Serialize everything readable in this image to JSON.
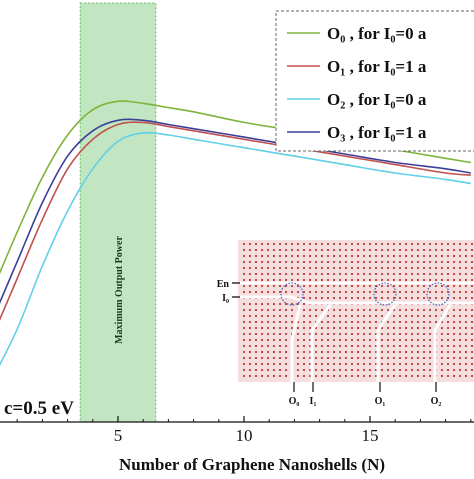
{
  "chart_data": {
    "type": "line",
    "title": "",
    "xlabel": "Number of Graphene Nanoshells (N)",
    "ylabel": "",
    "xlim": [
      0,
      19
    ],
    "ylim": [
      0,
      1
    ],
    "x_ticks": [
      5,
      10,
      15
    ],
    "grid": false,
    "legend_position": "top-right",
    "highlight_band": {
      "x0": 3.5,
      "x1": 6.5,
      "label": "Maximum Output Power",
      "color": "#8fd28f"
    },
    "annotation": "c=0.5 eV",
    "series": [
      {
        "name": "O₀ , for I₀=0 a",
        "color": "#7fb43a",
        "x": [
          0,
          1,
          2,
          3,
          4,
          5,
          6,
          7,
          8,
          10,
          12,
          14,
          16,
          18,
          19
        ],
        "y": [
          0.31,
          0.45,
          0.58,
          0.68,
          0.74,
          0.76,
          0.755,
          0.745,
          0.735,
          0.71,
          0.69,
          0.665,
          0.645,
          0.625,
          0.615
        ]
      },
      {
        "name": "O₁ , for I₀=1 a",
        "color": "#c0504d",
        "x": [
          0,
          1,
          2,
          3,
          4,
          5,
          6,
          7,
          8,
          10,
          12,
          14,
          16,
          18,
          19
        ],
        "y": [
          0.2,
          0.34,
          0.48,
          0.6,
          0.67,
          0.705,
          0.71,
          0.7,
          0.69,
          0.67,
          0.65,
          0.63,
          0.61,
          0.59,
          0.585
        ]
      },
      {
        "name": "O₂ , for I₀=0 a",
        "color": "#5fd0e8",
        "x": [
          0,
          1,
          2,
          3,
          4,
          5,
          6,
          7,
          8,
          10,
          12,
          14,
          16,
          18,
          19
        ],
        "y": [
          0.1,
          0.22,
          0.37,
          0.5,
          0.6,
          0.665,
          0.685,
          0.68,
          0.67,
          0.65,
          0.63,
          0.61,
          0.59,
          0.575,
          0.565
        ]
      },
      {
        "name": "O₃ , for I₀=1 a",
        "color": "#3b3f99",
        "x": [
          0,
          1,
          2,
          3,
          4,
          5,
          6,
          7,
          8,
          10,
          12,
          14,
          16,
          18,
          19
        ],
        "y": [
          0.24,
          0.38,
          0.52,
          0.63,
          0.69,
          0.715,
          0.715,
          0.705,
          0.695,
          0.675,
          0.655,
          0.635,
          0.615,
          0.6,
          0.59
        ]
      }
    ]
  },
  "inset": {
    "input_labels": [
      "En",
      "I₀"
    ],
    "output_labels": [
      "O₀",
      "I₁",
      "O₁",
      "O₂"
    ],
    "background_color": "#f4dede",
    "dot_color": "#c23b3b"
  }
}
